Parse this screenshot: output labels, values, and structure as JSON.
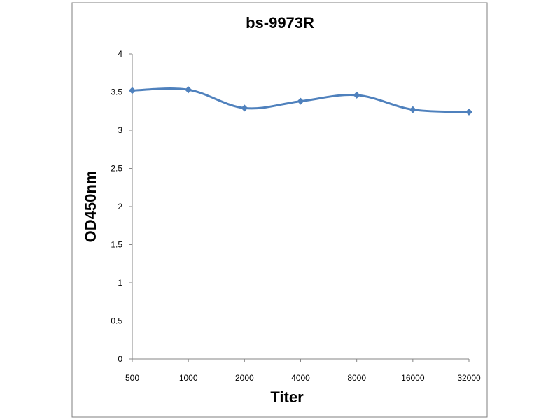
{
  "chart_data": {
    "type": "line",
    "title": "bs-9973R",
    "xlabel": "Titer",
    "ylabel": "OD450nm",
    "categories": [
      "500",
      "1000",
      "2000",
      "4000",
      "8000",
      "16000",
      "32000"
    ],
    "series": [
      {
        "values": [
          3.52,
          3.53,
          3.29,
          3.38,
          3.46,
          3.27,
          3.24
        ]
      }
    ],
    "ylim": [
      0,
      4
    ],
    "yticks": [
      "0",
      "0.5",
      "1",
      "1.5",
      "2",
      "2.5",
      "3",
      "3.5",
      "4"
    ],
    "grid": false,
    "legend": "none",
    "colors": {
      "series": "#4F81BD",
      "axis": "#868686",
      "frame": "#7f7f7f"
    }
  }
}
